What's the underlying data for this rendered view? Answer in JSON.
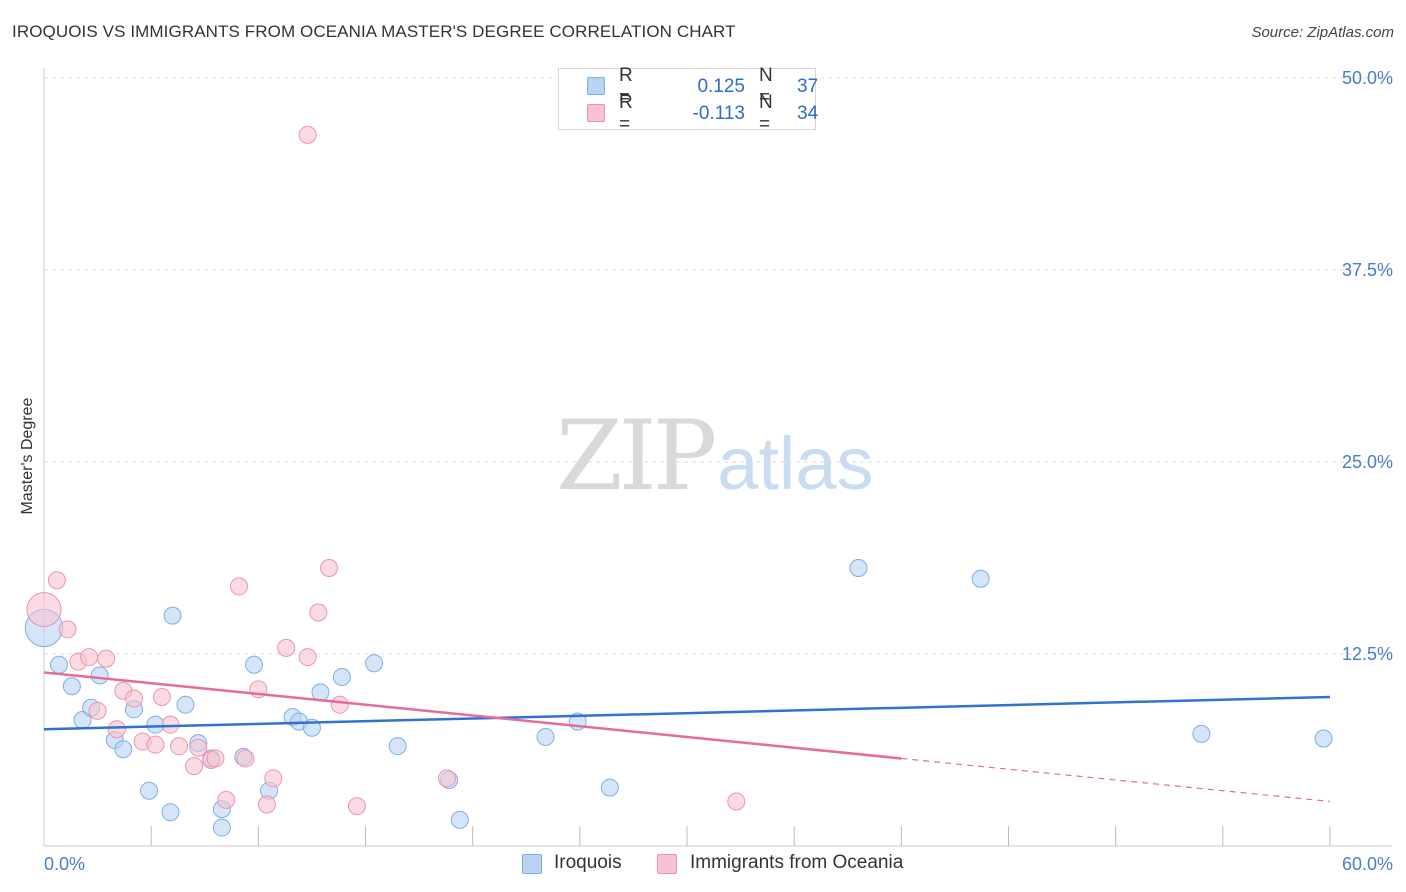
{
  "header": {
    "title": "IROQUOIS VS IMMIGRANTS FROM OCEANIA MASTER'S DEGREE CORRELATION CHART",
    "source": "Source: ZipAtlas.com"
  },
  "watermark": {
    "zip": "ZIP",
    "atlas": "atlas"
  },
  "legend": {
    "rows": [
      {
        "r_label": "R =",
        "r_value": "0.125",
        "n_label": "N =",
        "n_value": "37"
      },
      {
        "r_label": "R =",
        "r_value": "-0.113",
        "n_label": "N =",
        "n_value": "34"
      }
    ]
  },
  "bottom_legend": {
    "items": [
      {
        "label": "Iroquois"
      },
      {
        "label": "Immigrants from Oceania"
      }
    ]
  },
  "colors": {
    "blue_fill": "#b9d3f3",
    "blue_stroke": "#7faee6",
    "blue_line": "#2f72d0",
    "pink_fill": "#f7c3d2",
    "pink_stroke": "#ee93ae",
    "pink_line": "#e56b98",
    "grid": "#dddddd",
    "axis_text": "#4a7cc9"
  },
  "chart_data": {
    "type": "scatter",
    "title": "IROQUOIS VS IMMIGRANTS FROM OCEANIA MASTER'S DEGREE CORRELATION CHART",
    "xlabel": "",
    "ylabel": "Master's Degree",
    "xlim": [
      0,
      60
    ],
    "ylim": [
      0,
      50
    ],
    "x_tick_labels": [
      "0.0%",
      "60.0%"
    ],
    "y_ticks": [
      12.5,
      25.0,
      37.5,
      50.0
    ],
    "y_tick_labels": [
      "12.5%",
      "25.0%",
      "37.5%",
      "50.0%"
    ],
    "grid": true,
    "series": [
      {
        "name": "Iroquois",
        "color": "blue",
        "points": [
          [
            0.0,
            14.2,
            2.2
          ],
          [
            0.7,
            11.8,
            1
          ],
          [
            1.3,
            10.4,
            1
          ],
          [
            1.8,
            8.2,
            1
          ],
          [
            2.2,
            9.0,
            1
          ],
          [
            2.6,
            11.1,
            1
          ],
          [
            3.3,
            6.9,
            1
          ],
          [
            3.7,
            6.3,
            1
          ],
          [
            4.2,
            8.9,
            1
          ],
          [
            4.9,
            3.6,
            1
          ],
          [
            5.2,
            7.9,
            1
          ],
          [
            5.9,
            2.2,
            1
          ],
          [
            6.0,
            15.0,
            1
          ],
          [
            6.6,
            9.2,
            1
          ],
          [
            7.2,
            6.7,
            1
          ],
          [
            7.8,
            5.7,
            1
          ],
          [
            8.3,
            2.4,
            1
          ],
          [
            8.3,
            1.2,
            1
          ],
          [
            9.3,
            5.8,
            1
          ],
          [
            9.8,
            11.8,
            1
          ],
          [
            10.5,
            3.6,
            1
          ],
          [
            11.6,
            8.4,
            1
          ],
          [
            11.9,
            8.1,
            1
          ],
          [
            12.5,
            7.7,
            1
          ],
          [
            12.9,
            10.0,
            1
          ],
          [
            13.9,
            11.0,
            1
          ],
          [
            15.4,
            11.9,
            1
          ],
          [
            16.5,
            6.5,
            1
          ],
          [
            18.9,
            4.3,
            1
          ],
          [
            19.4,
            1.7,
            1
          ],
          [
            23.4,
            7.1,
            1
          ],
          [
            24.9,
            8.1,
            1
          ],
          [
            26.4,
            3.8,
            1
          ],
          [
            38.0,
            18.1,
            1
          ],
          [
            43.7,
            17.4,
            1
          ],
          [
            54.0,
            7.3,
            1
          ],
          [
            59.7,
            7.0,
            1
          ]
        ]
      },
      {
        "name": "Immigrants from Oceania",
        "color": "pink",
        "points": [
          [
            0.0,
            15.4,
            2.0
          ],
          [
            0.6,
            17.3,
            1
          ],
          [
            1.1,
            14.1,
            1
          ],
          [
            1.6,
            12.0,
            1
          ],
          [
            2.1,
            12.3,
            1
          ],
          [
            2.5,
            8.8,
            1
          ],
          [
            2.9,
            12.2,
            1
          ],
          [
            3.4,
            7.6,
            1
          ],
          [
            3.7,
            10.1,
            1
          ],
          [
            4.2,
            9.6,
            1
          ],
          [
            4.6,
            6.8,
            1
          ],
          [
            5.2,
            6.6,
            1
          ],
          [
            5.5,
            9.7,
            1
          ],
          [
            5.9,
            7.9,
            1
          ],
          [
            6.3,
            6.5,
            1
          ],
          [
            7.0,
            5.2,
            1
          ],
          [
            7.2,
            6.4,
            1
          ],
          [
            7.8,
            5.6,
            1
          ],
          [
            8.0,
            5.7,
            1
          ],
          [
            8.5,
            3.0,
            1
          ],
          [
            9.1,
            16.9,
            1
          ],
          [
            9.4,
            5.7,
            1
          ],
          [
            10.0,
            10.2,
            1
          ],
          [
            10.4,
            2.7,
            1
          ],
          [
            10.7,
            4.4,
            1
          ],
          [
            11.3,
            12.9,
            1
          ],
          [
            12.3,
            46.3,
            1
          ],
          [
            12.3,
            12.3,
            1
          ],
          [
            12.8,
            15.2,
            1
          ],
          [
            13.3,
            18.1,
            1
          ],
          [
            13.8,
            9.2,
            1
          ],
          [
            14.6,
            2.6,
            1
          ],
          [
            18.8,
            4.4,
            1
          ],
          [
            32.3,
            2.9,
            1
          ]
        ]
      }
    ],
    "trend_lines": [
      {
        "series": "Iroquois",
        "x0": 0,
        "y0": 7.6,
        "x1": 60,
        "y1": 9.7,
        "solid_until": 60
      },
      {
        "series": "Immigrants from Oceania",
        "x0": 0,
        "y0": 11.3,
        "x1": 60,
        "y1": 2.9,
        "solid_until": 40
      }
    ]
  }
}
